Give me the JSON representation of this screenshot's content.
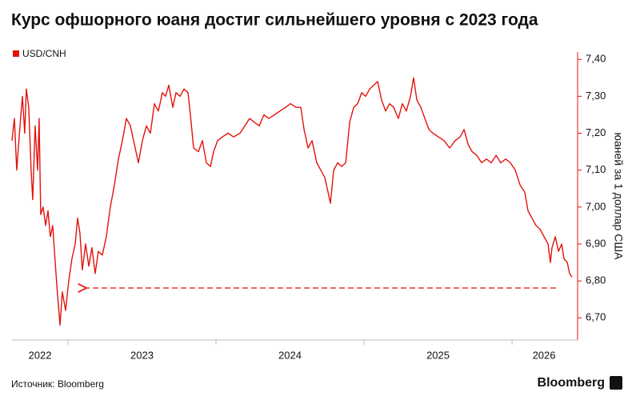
{
  "chart_data": {
    "type": "line",
    "title": "Курс офшорного юаня достиг сильнейшего уровня с 2023 года",
    "y_axis_label": "юаней за 1 доллар США",
    "source": "Источник: Bloomberg",
    "brand": "Bloomberg",
    "x": [
      2022.622,
      2022.638,
      2022.654,
      2022.676,
      2022.692,
      2022.708,
      2022.719,
      2022.735,
      2022.751,
      2022.762,
      2022.778,
      2022.795,
      2022.805,
      2022.816,
      2022.832,
      2022.849,
      2022.865,
      2022.881,
      2022.897,
      2022.914,
      2022.93,
      2022.946,
      2022.962,
      2022.984,
      2023.005,
      2023.027,
      2023.049,
      2023.065,
      2023.081,
      2023.097,
      2023.119,
      2023.141,
      2023.162,
      2023.184,
      2023.205,
      2023.232,
      2023.259,
      2023.286,
      2023.314,
      2023.341,
      2023.368,
      2023.395,
      2023.422,
      2023.449,
      2023.476,
      2023.503,
      2023.53,
      2023.557,
      2023.584,
      2023.611,
      2023.638,
      2023.659,
      2023.681,
      2023.708,
      2023.73,
      2023.757,
      2023.784,
      2023.811,
      2023.827,
      2023.849,
      2023.881,
      2023.908,
      2023.935,
      2023.962,
      2023.984,
      2024.011,
      2024.043,
      2024.081,
      2024.119,
      2024.162,
      2024.195,
      2024.227,
      2024.259,
      2024.292,
      2024.324,
      2024.357,
      2024.395,
      2024.432,
      2024.47,
      2024.503,
      2024.541,
      2024.573,
      2024.595,
      2024.622,
      2024.649,
      2024.681,
      2024.708,
      2024.735,
      2024.757,
      2024.773,
      2024.795,
      2024.822,
      2024.849,
      2024.876,
      2024.903,
      2024.93,
      2024.957,
      2024.984,
      2025.011,
      2025.038,
      2025.065,
      2025.092,
      2025.119,
      2025.146,
      2025.173,
      2025.2,
      2025.232,
      2025.259,
      2025.286,
      2025.314,
      2025.335,
      2025.357,
      2025.384,
      2025.411,
      2025.438,
      2025.465,
      2025.503,
      2025.541,
      2025.578,
      2025.616,
      2025.649,
      2025.676,
      2025.703,
      2025.73,
      2025.762,
      2025.795,
      2025.827,
      2025.859,
      2025.892,
      2025.924,
      2025.957,
      2025.989,
      2026.022,
      2026.054,
      2026.086,
      2026.108,
      2026.135,
      2026.162,
      2026.189,
      2026.216,
      2026.243,
      2026.259,
      2026.27,
      2026.292,
      2026.314,
      2026.335,
      2026.351,
      2026.373,
      2026.389,
      2026.405
    ],
    "series": [
      {
        "name": "USD/CNH",
        "color": "#e3120b",
        "values": [
          7.18,
          7.24,
          7.1,
          7.22,
          7.3,
          7.2,
          7.32,
          7.27,
          7.1,
          7.02,
          7.22,
          7.1,
          7.24,
          6.98,
          7.0,
          6.95,
          6.99,
          6.92,
          6.95,
          6.85,
          6.76,
          6.68,
          6.77,
          6.72,
          6.8,
          6.86,
          6.9,
          6.97,
          6.93,
          6.83,
          6.9,
          6.84,
          6.89,
          6.82,
          6.88,
          6.87,
          6.92,
          7.0,
          7.06,
          7.13,
          7.18,
          7.24,
          7.22,
          7.17,
          7.12,
          7.18,
          7.22,
          7.2,
          7.28,
          7.26,
          7.31,
          7.3,
          7.33,
          7.27,
          7.31,
          7.3,
          7.32,
          7.31,
          7.25,
          7.16,
          7.15,
          7.18,
          7.12,
          7.11,
          7.15,
          7.18,
          7.19,
          7.2,
          7.19,
          7.2,
          7.22,
          7.24,
          7.23,
          7.22,
          7.25,
          7.24,
          7.25,
          7.26,
          7.27,
          7.28,
          7.27,
          7.27,
          7.21,
          7.16,
          7.18,
          7.12,
          7.1,
          7.08,
          7.04,
          7.01,
          7.1,
          7.12,
          7.11,
          7.12,
          7.23,
          7.27,
          7.28,
          7.31,
          7.3,
          7.32,
          7.33,
          7.34,
          7.29,
          7.26,
          7.28,
          7.27,
          7.24,
          7.28,
          7.26,
          7.3,
          7.35,
          7.29,
          7.27,
          7.24,
          7.21,
          7.2,
          7.19,
          7.18,
          7.16,
          7.18,
          7.19,
          7.21,
          7.17,
          7.15,
          7.14,
          7.12,
          7.13,
          7.12,
          7.14,
          7.12,
          7.13,
          7.12,
          7.1,
          7.06,
          7.04,
          6.99,
          6.97,
          6.95,
          6.94,
          6.92,
          6.9,
          6.85,
          6.89,
          6.92,
          6.88,
          6.9,
          6.86,
          6.85,
          6.82,
          6.81
        ]
      }
    ],
    "xlim": [
      2022.622,
      2026.432
    ],
    "xticks": [
      2022,
      2023,
      2024,
      2025,
      2026
    ],
    "ylim": [
      6.64,
      7.42
    ],
    "yticks": [
      {
        "value": 6.7,
        "label": "6,70"
      },
      {
        "value": 6.8,
        "label": "6,80"
      },
      {
        "value": 6.9,
        "label": "6,90"
      },
      {
        "value": 7.0,
        "label": "7,00"
      },
      {
        "value": 7.1,
        "label": "7,10"
      },
      {
        "value": 7.2,
        "label": "7,20"
      },
      {
        "value": 7.3,
        "label": "7,30"
      },
      {
        "value": 7.4,
        "label": "7,40"
      }
    ],
    "y_axis_side": "right",
    "grid": false
  }
}
